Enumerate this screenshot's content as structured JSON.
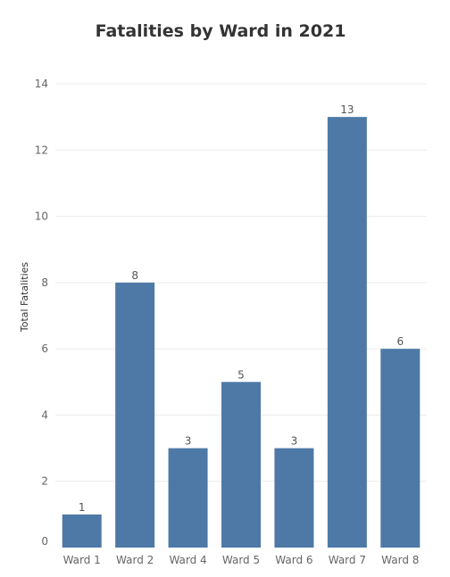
{
  "chart_data": {
    "type": "bar",
    "title": "Fatalities by Ward in 2021",
    "xlabel": "",
    "ylabel": "Total Fatalities",
    "categories": [
      "Ward 1",
      "Ward 2",
      "Ward 4",
      "Ward 5",
      "Ward 6",
      "Ward 7",
      "Ward 8"
    ],
    "values": [
      1,
      8,
      3,
      5,
      3,
      13,
      6
    ],
    "ylim": [
      0,
      14
    ],
    "yticks": [
      0,
      2,
      4,
      6,
      8,
      10,
      12,
      14
    ],
    "grid": true,
    "bar_color": "#4e79a7"
  }
}
